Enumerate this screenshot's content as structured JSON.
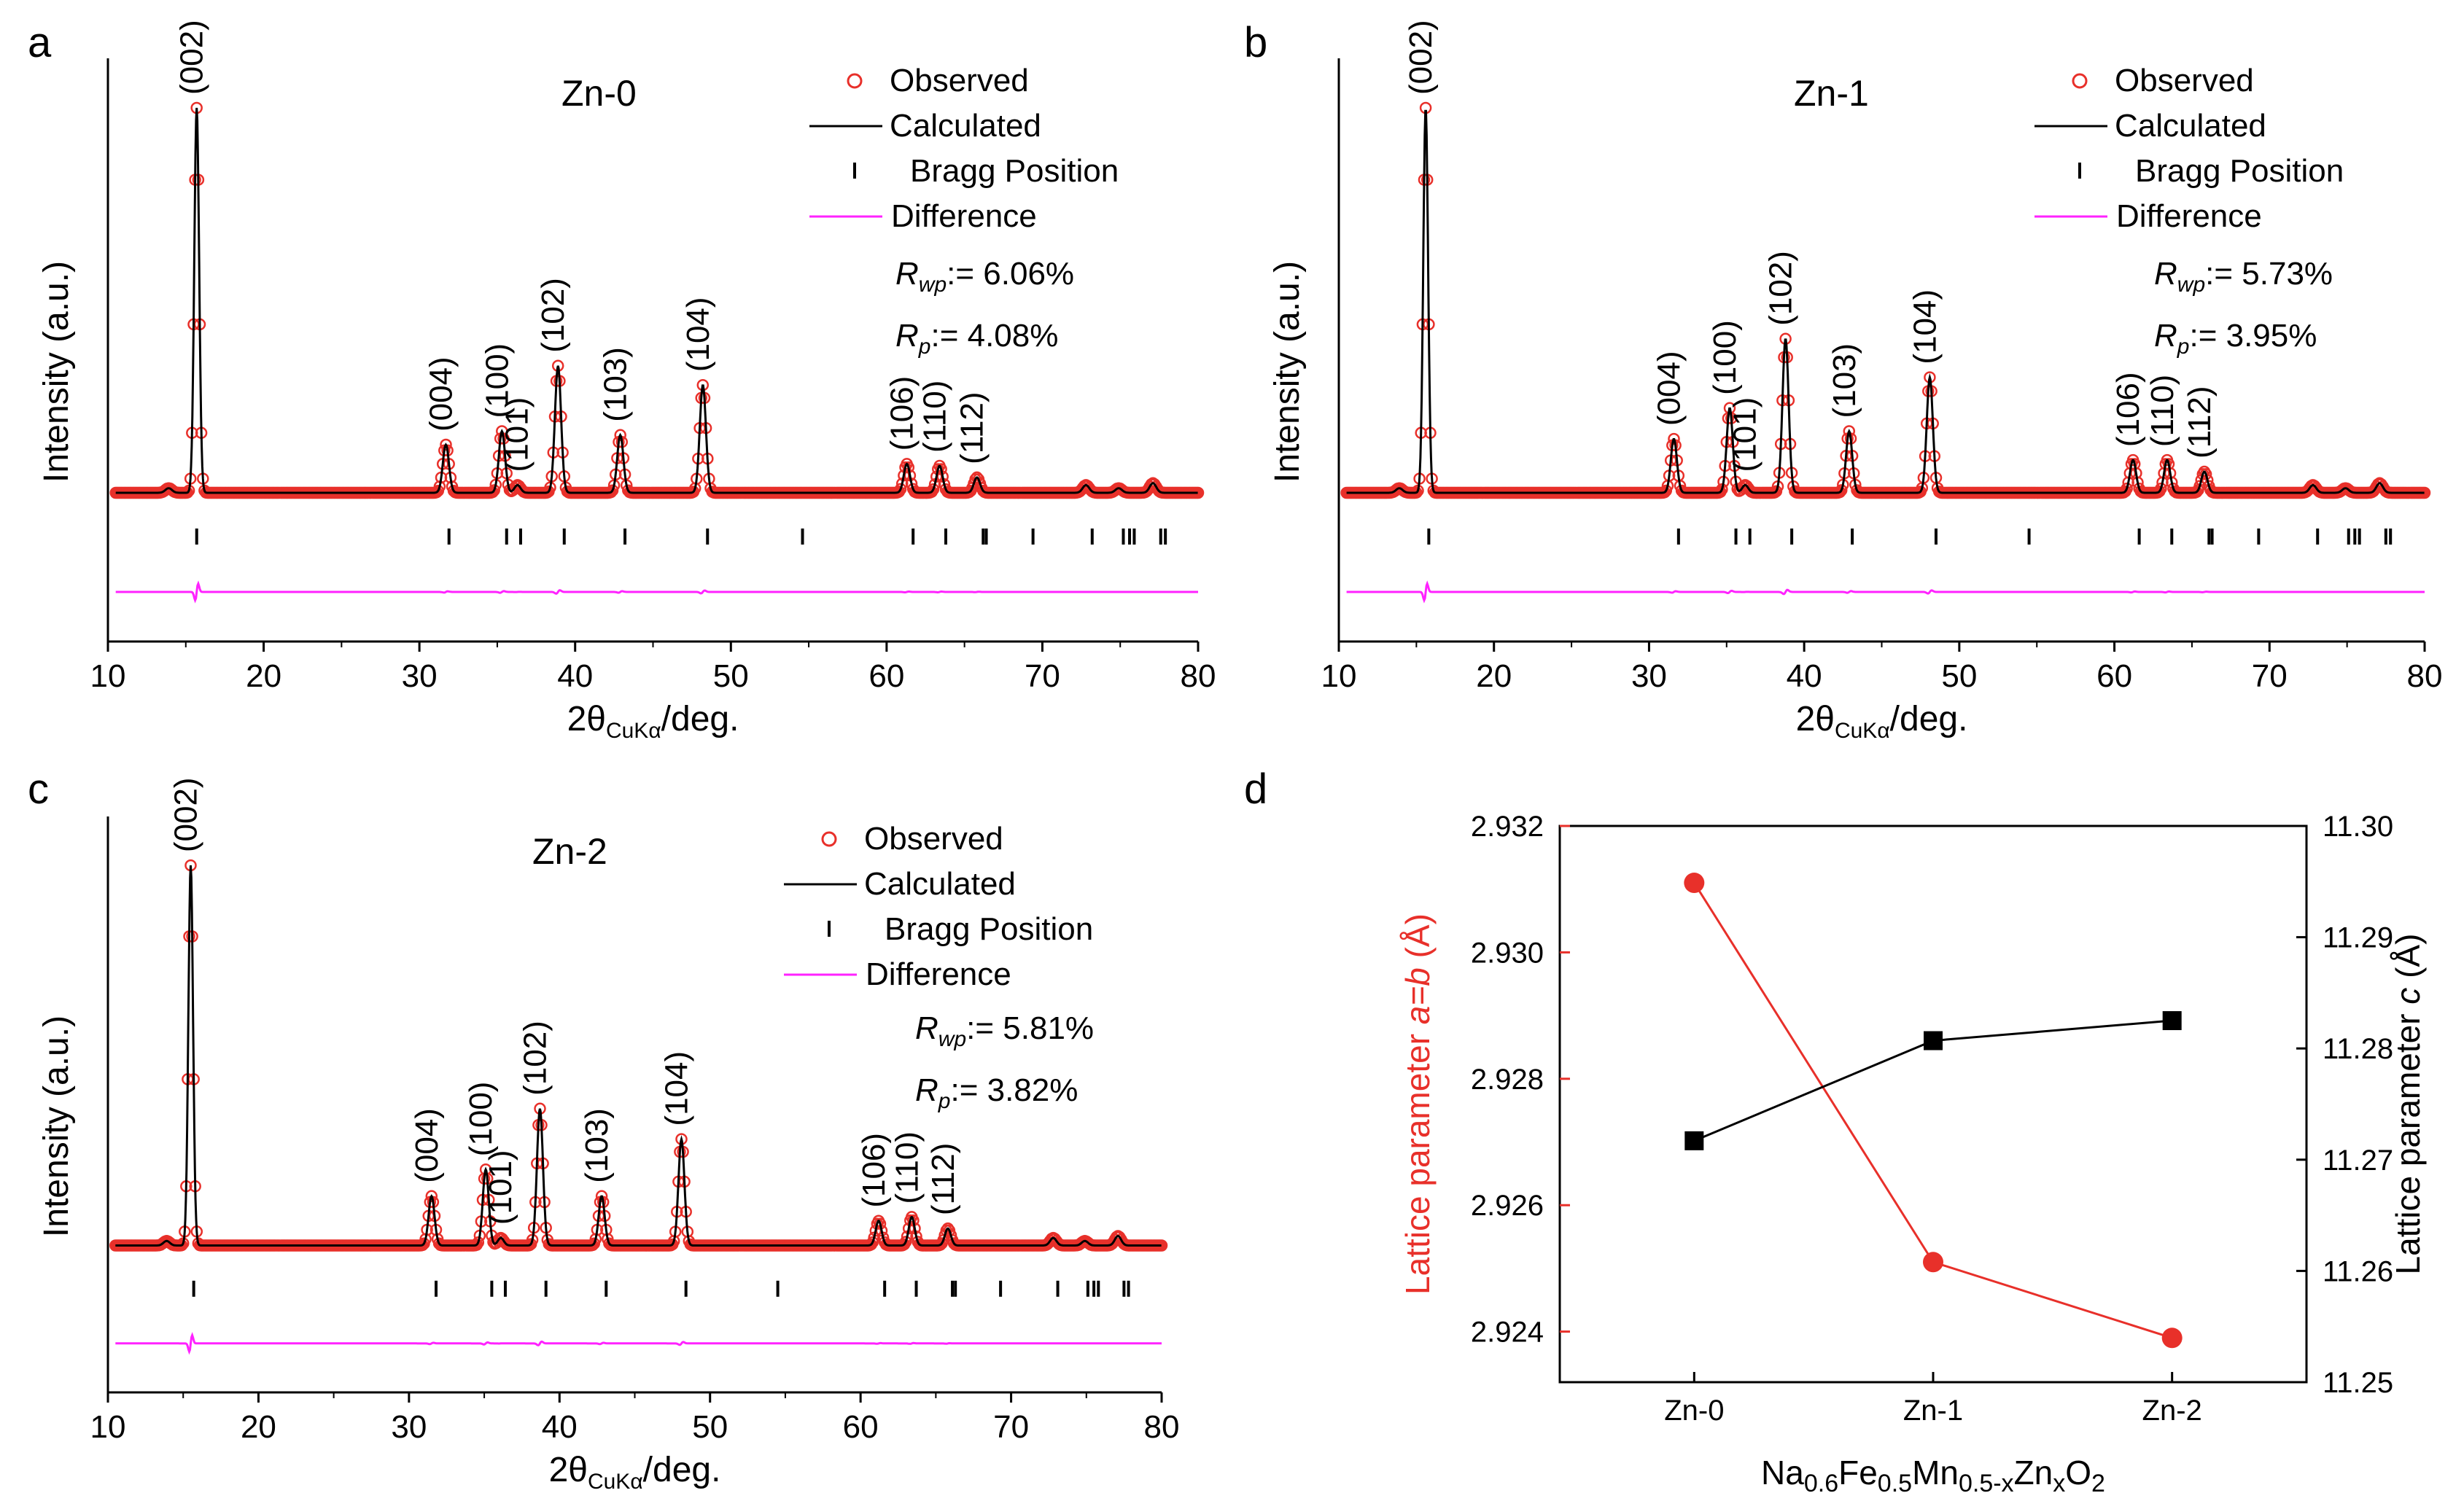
{
  "colors": {
    "observed": "#e8302a",
    "calculated": "#000000",
    "bragg": "#000000",
    "difference": "#ff22ff",
    "lattice_a": "#e8302a",
    "lattice_c": "#000000"
  },
  "chart_data": [
    {
      "id": "a",
      "type": "line",
      "panel_letter": "a",
      "title": "Zn-0",
      "xlabel_main": "2θ",
      "xlabel_sub": "CuKα",
      "xlabel_tail": "/deg.",
      "ylabel": "Intensity (a.u.)",
      "xlim": [
        10,
        80
      ],
      "xticks": [
        10,
        20,
        30,
        40,
        50,
        60,
        70,
        80
      ],
      "legend": [
        "Observed",
        "Calculated",
        "Bragg Position",
        "Difference"
      ],
      "r_wp_label": "R",
      "r_wp_sub": "wp",
      "r_wp_value": ":= 6.06%",
      "r_p_label": "R",
      "r_p_sub": "p",
      "r_p_value": ":= 4.08%",
      "peaks": [
        {
          "hkl": "(002)",
          "x": 15.7,
          "h": 1.0
        },
        {
          "hkl": "(004)",
          "x": 31.7,
          "h": 0.125
        },
        {
          "hkl": "(100)",
          "x": 35.3,
          "h": 0.16
        },
        {
          "hkl": "(101)",
          "x": 36.3,
          "h": 0.02
        },
        {
          "hkl": "(102)",
          "x": 38.9,
          "h": 0.33
        },
        {
          "hkl": "(103)",
          "x": 42.9,
          "h": 0.15
        },
        {
          "hkl": "(104)",
          "x": 48.2,
          "h": 0.28
        },
        {
          "hkl": "(106)",
          "x": 61.3,
          "h": 0.075
        },
        {
          "hkl": "(110)",
          "x": 63.4,
          "h": 0.07
        },
        {
          "hkl": "(112)",
          "x": 65.8,
          "h": 0.04
        }
      ],
      "bragg_positions": [
        15.7,
        31.9,
        35.6,
        36.5,
        39.3,
        43.2,
        48.5,
        54.6,
        61.7,
        63.8,
        66.2,
        66.4,
        69.4,
        73.2,
        75.2,
        75.6,
        75.9,
        77.6,
        77.9
      ]
    },
    {
      "id": "b",
      "type": "line",
      "panel_letter": "b",
      "title": "Zn-1",
      "xlabel_main": "2θ",
      "xlabel_sub": "CuKα",
      "xlabel_tail": "/deg.",
      "ylabel": "Intensity (a.u.)",
      "xlim": [
        10,
        80
      ],
      "xticks": [
        10,
        20,
        30,
        40,
        50,
        60,
        70,
        80
      ],
      "legend": [
        "Observed",
        "Calculated",
        "Bragg Position",
        "Difference"
      ],
      "r_wp_label": "R",
      "r_wp_sub": "wp",
      "r_wp_value": ":= 5.73%",
      "r_p_label": "R",
      "r_p_sub": "p",
      "r_p_value": ":= 3.95%",
      "peaks": [
        {
          "hkl": "(002)",
          "x": 15.6,
          "h": 1.0
        },
        {
          "hkl": "(004)",
          "x": 31.6,
          "h": 0.14
        },
        {
          "hkl": "(100)",
          "x": 35.2,
          "h": 0.22
        },
        {
          "hkl": "(101)",
          "x": 36.2,
          "h": 0.02
        },
        {
          "hkl": "(102)",
          "x": 38.8,
          "h": 0.4
        },
        {
          "hkl": "(103)",
          "x": 42.9,
          "h": 0.16
        },
        {
          "hkl": "(104)",
          "x": 48.1,
          "h": 0.3
        },
        {
          "hkl": "(106)",
          "x": 61.2,
          "h": 0.085
        },
        {
          "hkl": "(110)",
          "x": 63.4,
          "h": 0.085
        },
        {
          "hkl": "(112)",
          "x": 65.8,
          "h": 0.055
        }
      ],
      "bragg_positions": [
        15.8,
        31.9,
        35.6,
        36.5,
        39.2,
        43.1,
        48.5,
        54.5,
        61.6,
        63.7,
        66.1,
        66.3,
        69.3,
        73.1,
        75.1,
        75.5,
        75.8,
        77.5,
        77.8
      ]
    },
    {
      "id": "c",
      "type": "line",
      "panel_letter": "c",
      "title": "Zn-2",
      "xlabel_main": "2θ",
      "xlabel_sub": "CuKα",
      "xlabel_tail": "/deg.",
      "ylabel": "Intensity (a.u.)",
      "xlim": [
        10,
        80
      ],
      "xticks": [
        10,
        20,
        30,
        40,
        50,
        60,
        70,
        80
      ],
      "legend": [
        "Observed",
        "Calculated",
        "Bragg Position",
        "Difference"
      ],
      "r_wp_label": "R",
      "r_wp_sub": "wp",
      "r_wp_value": ":= 5.81%",
      "r_p_label": "R",
      "r_p_sub": "p",
      "r_p_value": ":= 3.82%",
      "peaks": [
        {
          "hkl": "(002)",
          "x": 15.5,
          "h": 1.0
        },
        {
          "hkl": "(004)",
          "x": 31.5,
          "h": 0.13
        },
        {
          "hkl": "(100)",
          "x": 35.1,
          "h": 0.2
        },
        {
          "hkl": "(101)",
          "x": 36.1,
          "h": 0.02
        },
        {
          "hkl": "(102)",
          "x": 38.7,
          "h": 0.36
        },
        {
          "hkl": "(103)",
          "x": 42.8,
          "h": 0.13
        },
        {
          "hkl": "(104)",
          "x": 48.1,
          "h": 0.28
        },
        {
          "hkl": "(106)",
          "x": 61.2,
          "h": 0.065
        },
        {
          "hkl": "(110)",
          "x": 63.4,
          "h": 0.075
        },
        {
          "hkl": "(112)",
          "x": 65.8,
          "h": 0.045
        }
      ],
      "bragg_positions": [
        15.7,
        31.8,
        35.5,
        36.4,
        39.1,
        43.1,
        48.4,
        54.5,
        61.6,
        63.7,
        66.1,
        66.3,
        69.3,
        73.1,
        75.1,
        75.5,
        75.8,
        77.5,
        77.8
      ]
    },
    {
      "id": "d",
      "type": "line",
      "panel_letter": "d",
      "categories": [
        "Zn-0",
        "Zn-1",
        "Zn-2"
      ],
      "xlabel": "Na0.6Fe0.5Mn0.5-xZnxO2",
      "xlabel_parts": [
        "Na",
        "0.6",
        "Fe",
        "0.5",
        "Mn",
        "0.5-x",
        "Zn",
        "x",
        "O",
        "2"
      ],
      "ylabel_left_pre": "Lattice parameter ",
      "ylabel_left_ital": "a=b",
      "ylabel_left_post": " (Å)",
      "ylabel_right_pre": "Lattice parameter ",
      "ylabel_right_ital": "c",
      "ylabel_right_post": " (Å)",
      "ylim_left": [
        2.9232,
        2.932
      ],
      "yticks_left": [
        "2.924",
        "2.926",
        "2.928",
        "2.930",
        "2.932"
      ],
      "ylim_right": [
        11.25,
        11.3
      ],
      "yticks_right": [
        "11.25",
        "11.26",
        "11.27",
        "11.28",
        "11.29",
        "11.30"
      ],
      "series": [
        {
          "name": "a=b",
          "axis": "left",
          "values": [
            2.9311,
            2.9251,
            2.9239
          ]
        },
        {
          "name": "c",
          "axis": "right",
          "values": [
            11.2717,
            11.2807,
            11.2825
          ]
        }
      ]
    }
  ]
}
